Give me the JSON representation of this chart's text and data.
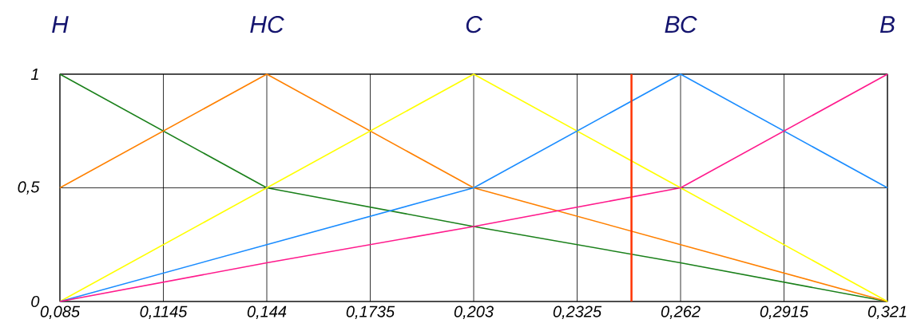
{
  "chart_data": {
    "type": "line",
    "x": [
      0.085,
      0.144,
      0.203,
      0.262,
      0.321
    ],
    "series": [
      {
        "color": "#1a801a",
        "values": [
          1,
          0.5,
          0.33,
          0.17,
          0
        ]
      },
      {
        "color": "#ff8000",
        "values": [
          0.5,
          1,
          0.5,
          0.25,
          0
        ]
      },
      {
        "color": "#ffff00",
        "values": [
          0,
          0.5,
          1,
          0.5,
          0
        ]
      },
      {
        "color": "#1a8cff",
        "values": [
          0,
          0.25,
          0.5,
          1,
          0.5
        ]
      },
      {
        "color": "#ff1a8c",
        "values": [
          0,
          0.17,
          0.33,
          0.5,
          1
        ]
      }
    ],
    "xlim": [
      0.085,
      0.321
    ],
    "xticks": [
      {
        "value": 0.085,
        "label": "0,085"
      },
      {
        "value": 0.1145,
        "label": "0,1145"
      },
      {
        "value": 0.144,
        "label": "0,144"
      },
      {
        "value": 0.1735,
        "label": "0,1735"
      },
      {
        "value": 0.203,
        "label": "0,203"
      },
      {
        "value": 0.2325,
        "label": "0,2325"
      },
      {
        "value": 0.262,
        "label": "0,262"
      },
      {
        "value": 0.2915,
        "label": "0,2915"
      },
      {
        "value": 0.321,
        "label": "0,321"
      }
    ],
    "annotations": [
      {
        "text": "Н",
        "x": 0.085,
        "y": 1
      },
      {
        "text": "НС",
        "x": 0.144,
        "y": 1
      },
      {
        "text": "С",
        "x": 0.203,
        "y": 1
      },
      {
        "text": "ВС",
        "x": 0.262,
        "y": 1
      },
      {
        "text": "В",
        "x": 0.321,
        "y": 1
      }
    ],
    "ylim": [
      0,
      1
    ],
    "yticks": [
      0,
      {
        "value": 0.5,
        "label": "0,5"
      },
      1
    ],
    "grid": true,
    "ref_lines": [
      {
        "axis": "x",
        "value": 0.248,
        "color": "#ff3300"
      }
    ]
  }
}
